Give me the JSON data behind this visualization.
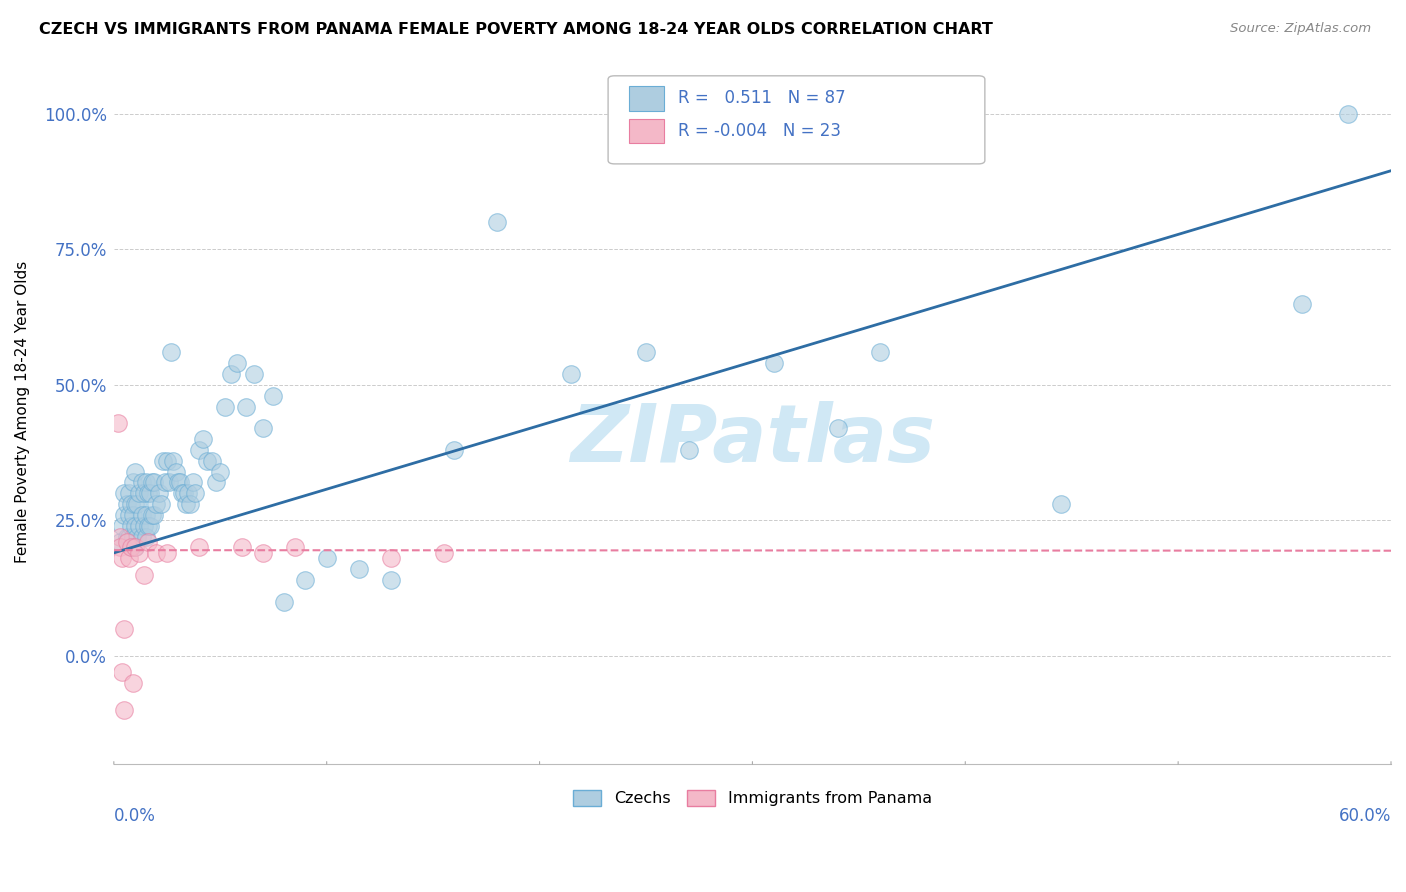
{
  "title": "CZECH VS IMMIGRANTS FROM PANAMA FEMALE POVERTY AMONG 18-24 YEAR OLDS CORRELATION CHART",
  "source": "Source: ZipAtlas.com",
  "ylabel": "Female Poverty Among 18-24 Year Olds",
  "xlim": [
    0.0,
    0.6
  ],
  "ylim": [
    -0.2,
    1.1
  ],
  "yticks": [
    0.0,
    0.25,
    0.5,
    0.75,
    1.0
  ],
  "ytick_labels": [
    "0.0%",
    "25.0%",
    "50.0%",
    "75.0%",
    "100.0%"
  ],
  "czech_R": 0.511,
  "czech_N": 87,
  "panama_R": -0.004,
  "panama_N": 23,
  "czech_color": "#aecde0",
  "czech_edge_color": "#6aadd5",
  "panama_color": "#f4b8c8",
  "panama_edge_color": "#e87da0",
  "trend_czech_color": "#2e6da4",
  "trend_panama_color": "#e87da0",
  "axis_label_color": "#4472c4",
  "watermark": "ZIPatlas",
  "watermark_color": "#d0e8f5",
  "legend_label_czech": "Czechs",
  "legend_label_panama": "Immigrants from Panama",
  "czech_trend_x0": 0.0,
  "czech_trend_y0": 0.19,
  "czech_trend_x1": 0.6,
  "czech_trend_y1": 0.895,
  "panama_trend_x0": 0.0,
  "panama_trend_y0": 0.195,
  "panama_trend_x1": 0.6,
  "panama_trend_y1": 0.194,
  "czech_x": [
    0.003,
    0.004,
    0.005,
    0.005,
    0.006,
    0.006,
    0.007,
    0.007,
    0.007,
    0.008,
    0.008,
    0.008,
    0.009,
    0.009,
    0.009,
    0.01,
    0.01,
    0.01,
    0.01,
    0.011,
    0.011,
    0.012,
    0.012,
    0.013,
    0.013,
    0.013,
    0.014,
    0.014,
    0.015,
    0.015,
    0.015,
    0.016,
    0.016,
    0.017,
    0.017,
    0.018,
    0.018,
    0.019,
    0.019,
    0.02,
    0.021,
    0.022,
    0.023,
    0.024,
    0.025,
    0.026,
    0.027,
    0.028,
    0.029,
    0.03,
    0.031,
    0.032,
    0.033,
    0.034,
    0.035,
    0.036,
    0.037,
    0.038,
    0.04,
    0.042,
    0.044,
    0.046,
    0.048,
    0.05,
    0.052,
    0.055,
    0.058,
    0.062,
    0.066,
    0.07,
    0.075,
    0.08,
    0.09,
    0.1,
    0.115,
    0.13,
    0.16,
    0.18,
    0.215,
    0.25,
    0.27,
    0.31,
    0.34,
    0.36,
    0.445,
    0.558,
    0.58
  ],
  "czech_y": [
    0.21,
    0.24,
    0.26,
    0.3,
    0.22,
    0.28,
    0.22,
    0.26,
    0.3,
    0.2,
    0.24,
    0.28,
    0.22,
    0.26,
    0.32,
    0.2,
    0.24,
    0.28,
    0.34,
    0.22,
    0.28,
    0.24,
    0.3,
    0.22,
    0.26,
    0.32,
    0.24,
    0.3,
    0.22,
    0.26,
    0.32,
    0.24,
    0.3,
    0.24,
    0.3,
    0.26,
    0.32,
    0.26,
    0.32,
    0.28,
    0.3,
    0.28,
    0.36,
    0.32,
    0.36,
    0.32,
    0.56,
    0.36,
    0.34,
    0.32,
    0.32,
    0.3,
    0.3,
    0.28,
    0.3,
    0.28,
    0.32,
    0.3,
    0.38,
    0.4,
    0.36,
    0.36,
    0.32,
    0.34,
    0.46,
    0.52,
    0.54,
    0.46,
    0.52,
    0.42,
    0.48,
    0.1,
    0.14,
    0.18,
    0.16,
    0.14,
    0.38,
    0.8,
    0.52,
    0.56,
    0.38,
    0.54,
    0.42,
    0.56,
    0.28,
    0.65,
    1.0
  ],
  "panama_x": [
    0.002,
    0.003,
    0.003,
    0.004,
    0.004,
    0.005,
    0.005,
    0.006,
    0.007,
    0.008,
    0.009,
    0.01,
    0.012,
    0.014,
    0.016,
    0.02,
    0.025,
    0.04,
    0.06,
    0.07,
    0.085,
    0.13,
    0.155
  ],
  "panama_y": [
    0.43,
    0.22,
    0.2,
    0.18,
    -0.03,
    -0.1,
    0.05,
    0.21,
    0.18,
    0.2,
    -0.05,
    0.2,
    0.19,
    0.15,
    0.21,
    0.19,
    0.19,
    0.2,
    0.2,
    0.19,
    0.2,
    0.18,
    0.19
  ]
}
